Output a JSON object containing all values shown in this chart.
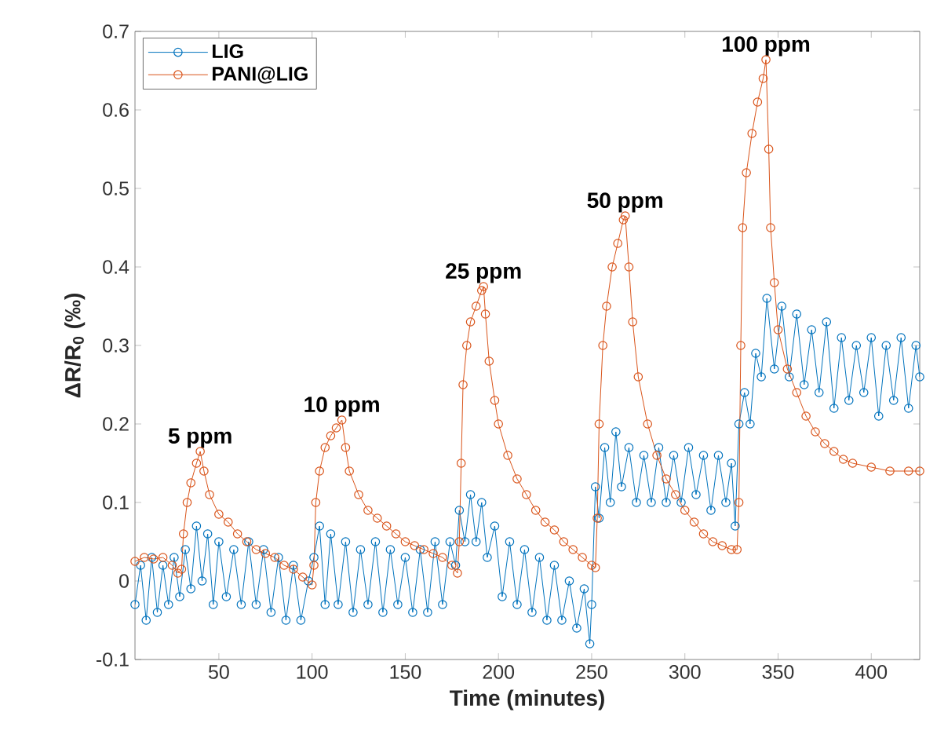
{
  "chart_data": {
    "type": "line",
    "xlabel": "Time (minutes)",
    "ylabel": "ΔR/R$_{0}$ (‰)",
    "xlim": [
      5,
      426
    ],
    "ylim": [
      -0.1,
      0.7
    ],
    "xticks": [
      50,
      100,
      150,
      200,
      250,
      300,
      350,
      400
    ],
    "yticks": [
      -0.1,
      0,
      0.1,
      0.2,
      0.3,
      0.4,
      0.5,
      0.6,
      0.7
    ],
    "legend": "top left",
    "marker": "circle",
    "line_style": "solid",
    "series": [
      {
        "name": "LIG",
        "color": "#0072bd",
        "x": [
          5,
          8,
          11,
          14,
          17,
          20,
          23,
          26,
          29,
          32,
          35,
          38,
          41,
          44,
          47,
          50,
          54,
          58,
          62,
          66,
          70,
          74,
          78,
          82,
          86,
          90,
          94,
          98,
          101,
          104,
          107,
          110,
          114,
          118,
          122,
          126,
          130,
          134,
          138,
          142,
          146,
          150,
          154,
          158,
          162,
          166,
          170,
          174,
          177,
          179,
          182,
          185,
          188,
          191,
          194,
          198,
          202,
          206,
          210,
          214,
          218,
          222,
          226,
          230,
          234,
          238,
          242,
          246,
          249,
          250,
          252,
          254,
          257,
          260,
          263,
          266,
          270,
          274,
          278,
          282,
          286,
          290,
          294,
          298,
          302,
          306,
          310,
          314,
          318,
          322,
          325,
          327,
          329,
          332,
          335,
          338,
          341,
          344,
          348,
          352,
          356,
          360,
          364,
          368,
          372,
          376,
          380,
          384,
          388,
          392,
          396,
          400,
          404,
          408,
          412,
          416,
          420,
          424,
          426
        ],
        "values": [
          -0.03,
          0.02,
          -0.05,
          0.03,
          -0.04,
          0.02,
          -0.03,
          0.03,
          -0.02,
          0.04,
          -0.01,
          0.07,
          0.0,
          0.06,
          -0.03,
          0.05,
          -0.02,
          0.04,
          -0.03,
          0.05,
          -0.03,
          0.04,
          -0.04,
          0.03,
          -0.05,
          0.02,
          -0.05,
          0.0,
          0.03,
          0.07,
          -0.03,
          0.06,
          -0.03,
          0.05,
          -0.04,
          0.04,
          -0.03,
          0.05,
          -0.04,
          0.04,
          -0.03,
          0.03,
          -0.04,
          0.04,
          -0.04,
          0.05,
          -0.03,
          0.05,
          0.02,
          0.09,
          0.05,
          0.11,
          0.05,
          0.1,
          0.03,
          0.07,
          -0.02,
          0.05,
          -0.03,
          0.04,
          -0.04,
          0.03,
          -0.05,
          0.02,
          -0.05,
          0.0,
          -0.06,
          -0.01,
          -0.08,
          -0.03,
          0.12,
          0.08,
          0.17,
          0.1,
          0.19,
          0.12,
          0.17,
          0.1,
          0.16,
          0.1,
          0.17,
          0.1,
          0.16,
          0.1,
          0.17,
          0.11,
          0.16,
          0.09,
          0.16,
          0.1,
          0.15,
          0.07,
          0.2,
          0.24,
          0.2,
          0.29,
          0.26,
          0.36,
          0.27,
          0.35,
          0.26,
          0.34,
          0.25,
          0.32,
          0.24,
          0.33,
          0.22,
          0.31,
          0.23,
          0.3,
          0.24,
          0.31,
          0.21,
          0.3,
          0.23,
          0.31,
          0.22,
          0.3,
          0.26
        ]
      },
      {
        "name": "PANI@LIG",
        "color": "#d95319",
        "x": [
          5,
          10,
          15,
          20,
          25,
          28,
          30,
          31,
          33,
          35,
          38,
          40,
          42,
          45,
          50,
          55,
          60,
          65,
          70,
          75,
          80,
          85,
          90,
          95,
          100,
          101,
          102,
          104,
          107,
          110,
          113,
          116,
          118,
          120,
          125,
          130,
          135,
          140,
          145,
          150,
          155,
          160,
          165,
          170,
          175,
          178,
          179,
          180,
          181,
          183,
          185,
          188,
          191,
          192,
          193,
          195,
          198,
          200,
          205,
          210,
          215,
          220,
          225,
          230,
          235,
          240,
          245,
          250,
          252,
          253,
          254,
          256,
          258,
          261,
          264,
          267,
          268,
          270,
          272,
          275,
          280,
          285,
          290,
          295,
          300,
          305,
          310,
          315,
          320,
          325,
          328,
          329,
          330,
          331,
          333,
          336,
          339,
          342,
          343.5,
          345,
          346,
          348,
          350,
          355,
          360,
          365,
          370,
          375,
          380,
          385,
          390,
          400,
          410,
          420,
          426
        ],
        "values": [
          0.025,
          0.03,
          0.028,
          0.03,
          0.02,
          0.01,
          0.015,
          0.06,
          0.1,
          0.125,
          0.15,
          0.165,
          0.14,
          0.11,
          0.085,
          0.075,
          0.06,
          0.05,
          0.04,
          0.035,
          0.03,
          0.02,
          0.015,
          0.005,
          -0.005,
          0.02,
          0.1,
          0.14,
          0.17,
          0.185,
          0.195,
          0.205,
          0.17,
          0.14,
          0.11,
          0.09,
          0.08,
          0.07,
          0.06,
          0.05,
          0.045,
          0.04,
          0.035,
          0.03,
          0.02,
          0.01,
          0.05,
          0.15,
          0.25,
          0.3,
          0.33,
          0.35,
          0.37,
          0.375,
          0.34,
          0.28,
          0.23,
          0.2,
          0.16,
          0.13,
          0.11,
          0.09,
          0.075,
          0.065,
          0.05,
          0.04,
          0.03,
          0.02,
          0.017,
          0.08,
          0.2,
          0.3,
          0.35,
          0.4,
          0.43,
          0.46,
          0.465,
          0.4,
          0.33,
          0.26,
          0.2,
          0.16,
          0.13,
          0.11,
          0.09,
          0.075,
          0.06,
          0.05,
          0.045,
          0.04,
          0.04,
          0.1,
          0.3,
          0.45,
          0.52,
          0.57,
          0.61,
          0.64,
          0.664,
          0.55,
          0.45,
          0.38,
          0.32,
          0.27,
          0.24,
          0.21,
          0.19,
          0.175,
          0.165,
          0.155,
          0.15,
          0.145,
          0.14,
          0.14,
          0.14
        ]
      }
    ],
    "annotations": [
      {
        "text": "5 ppm",
        "x": 40,
        "y": 0.165
      },
      {
        "text": "10 ppm",
        "x": 116,
        "y": 0.205
      },
      {
        "text": "25 ppm",
        "x": 192,
        "y": 0.375
      },
      {
        "text": "50 ppm",
        "x": 268,
        "y": 0.465
      },
      {
        "text": "100 ppm",
        "x": 343.5,
        "y": 0.664
      }
    ]
  }
}
